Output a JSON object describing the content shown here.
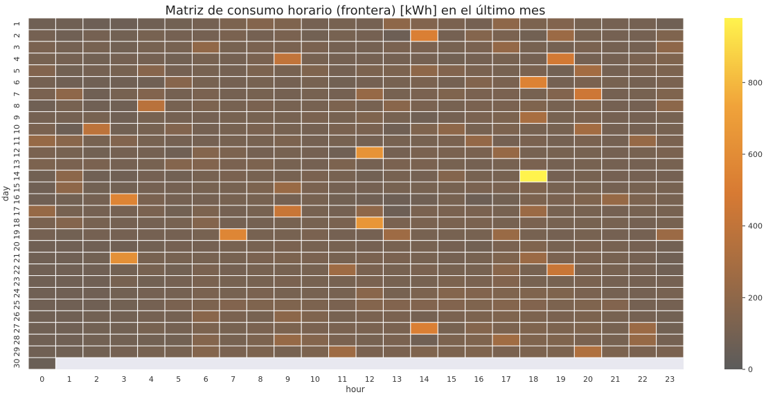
{
  "chart_data": {
    "type": "heatmap",
    "title": "Matriz de consumo horario (frontera) [kWh] en el último mes",
    "xlabel": "hour",
    "ylabel": "day",
    "x_categories": [
      "0",
      "1",
      "2",
      "3",
      "4",
      "5",
      "6",
      "7",
      "8",
      "9",
      "10",
      "11",
      "12",
      "13",
      "14",
      "15",
      "16",
      "17",
      "18",
      "19",
      "20",
      "21",
      "22",
      "23"
    ],
    "y_categories": [
      "1",
      "2",
      "3",
      "4",
      "5",
      "6",
      "7",
      "8",
      "9",
      "10",
      "11",
      "12",
      "13",
      "14",
      "15",
      "16",
      "17",
      "18",
      "19",
      "20",
      "21",
      "22",
      "23",
      "24",
      "25",
      "26",
      "27",
      "28",
      "29",
      "30"
    ],
    "colorbar": {
      "min": 0,
      "max": 980,
      "ticks": [
        0,
        200,
        400,
        600,
        800
      ]
    },
    "colormap": [
      "#5b5b5b",
      "#9a6a45",
      "#d77a33",
      "#f0a33a",
      "#fff34d"
    ],
    "missing_color": "#e8e8f0",
    "values": [
      [
        80,
        80,
        70,
        70,
        80,
        90,
        100,
        130,
        160,
        140,
        100,
        110,
        100,
        200,
        150,
        120,
        100,
        200,
        130,
        150,
        110,
        100,
        100,
        80
      ],
      [
        100,
        80,
        100,
        90,
        110,
        100,
        100,
        120,
        100,
        120,
        90,
        110,
        100,
        70,
        520,
        100,
        160,
        120,
        90,
        250,
        110,
        100,
        100,
        140
      ],
      [
        120,
        100,
        110,
        90,
        110,
        110,
        210,
        110,
        120,
        120,
        120,
        100,
        100,
        120,
        120,
        110,
        120,
        220,
        110,
        100,
        120,
        100,
        100,
        200
      ],
      [
        110,
        100,
        90,
        100,
        100,
        90,
        110,
        100,
        120,
        400,
        110,
        100,
        100,
        100,
        100,
        90,
        100,
        110,
        100,
        470,
        100,
        100,
        120,
        140
      ],
      [
        150,
        90,
        100,
        110,
        170,
        100,
        110,
        100,
        130,
        110,
        140,
        100,
        130,
        130,
        200,
        150,
        120,
        110,
        120,
        90,
        280,
        100,
        120,
        130
      ],
      [
        100,
        80,
        80,
        80,
        80,
        170,
        110,
        100,
        110,
        100,
        110,
        90,
        100,
        110,
        120,
        100,
        150,
        120,
        540,
        100,
        120,
        110,
        100,
        120
      ],
      [
        120,
        200,
        80,
        110,
        150,
        100,
        120,
        100,
        110,
        100,
        110,
        100,
        230,
        110,
        120,
        140,
        120,
        120,
        110,
        150,
        450,
        100,
        110,
        140
      ],
      [
        80,
        110,
        80,
        80,
        370,
        110,
        130,
        110,
        120,
        110,
        110,
        130,
        110,
        180,
        120,
        110,
        120,
        120,
        140,
        110,
        140,
        100,
        100,
        190
      ],
      [
        100,
        100,
        110,
        80,
        110,
        100,
        100,
        110,
        110,
        110,
        120,
        110,
        140,
        110,
        80,
        100,
        120,
        130,
        300,
        110,
        120,
        100,
        100,
        110
      ],
      [
        120,
        70,
        380,
        90,
        110,
        150,
        100,
        110,
        120,
        110,
        100,
        120,
        120,
        80,
        140,
        200,
        110,
        130,
        110,
        110,
        280,
        100,
        100,
        110
      ],
      [
        230,
        180,
        110,
        150,
        110,
        100,
        100,
        110,
        110,
        130,
        100,
        110,
        100,
        110,
        110,
        120,
        220,
        100,
        120,
        100,
        120,
        100,
        230,
        120
      ],
      [
        120,
        110,
        90,
        100,
        100,
        80,
        160,
        130,
        100,
        110,
        100,
        80,
        640,
        100,
        120,
        120,
        120,
        230,
        110,
        110,
        110,
        100,
        110,
        120
      ],
      [
        130,
        120,
        120,
        100,
        110,
        160,
        150,
        120,
        130,
        110,
        100,
        130,
        100,
        120,
        120,
        110,
        100,
        110,
        120,
        100,
        110,
        100,
        100,
        110
      ],
      [
        90,
        190,
        80,
        80,
        100,
        90,
        110,
        120,
        110,
        110,
        120,
        110,
        90,
        110,
        100,
        160,
        110,
        110,
        980,
        100,
        110,
        100,
        100,
        100
      ],
      [
        80,
        200,
        90,
        90,
        100,
        100,
        110,
        110,
        130,
        240,
        120,
        100,
        100,
        110,
        110,
        110,
        120,
        120,
        140,
        110,
        110,
        100,
        110,
        110
      ],
      [
        80,
        90,
        100,
        550,
        120,
        100,
        100,
        110,
        110,
        100,
        110,
        90,
        80,
        70,
        80,
        110,
        70,
        90,
        130,
        120,
        140,
        230,
        130,
        110
      ],
      [
        230,
        110,
        100,
        100,
        120,
        90,
        130,
        100,
        110,
        430,
        110,
        100,
        200,
        70,
        120,
        120,
        120,
        110,
        250,
        110,
        110,
        100,
        110,
        110
      ],
      [
        120,
        160,
        110,
        100,
        100,
        110,
        160,
        100,
        100,
        110,
        110,
        120,
        660,
        120,
        120,
        120,
        120,
        110,
        120,
        110,
        110,
        110,
        100,
        110
      ],
      [
        100,
        90,
        100,
        100,
        100,
        100,
        110,
        560,
        110,
        110,
        120,
        100,
        100,
        260,
        110,
        110,
        110,
        240,
        110,
        100,
        110,
        100,
        100,
        250
      ],
      [
        80,
        80,
        80,
        80,
        90,
        100,
        100,
        110,
        110,
        120,
        110,
        110,
        100,
        110,
        110,
        100,
        90,
        120,
        140,
        110,
        120,
        110,
        100,
        90
      ],
      [
        80,
        80,
        90,
        620,
        110,
        110,
        110,
        110,
        120,
        130,
        120,
        110,
        120,
        120,
        110,
        100,
        110,
        140,
        250,
        120,
        120,
        110,
        100,
        80
      ],
      [
        80,
        80,
        80,
        90,
        110,
        90,
        120,
        100,
        110,
        110,
        110,
        260,
        120,
        110,
        120,
        110,
        110,
        180,
        110,
        430,
        120,
        110,
        100,
        80
      ],
      [
        80,
        80,
        80,
        110,
        90,
        100,
        120,
        110,
        110,
        120,
        110,
        110,
        120,
        110,
        110,
        130,
        120,
        150,
        110,
        110,
        120,
        100,
        100,
        100
      ],
      [
        80,
        80,
        80,
        90,
        100,
        100,
        120,
        110,
        120,
        110,
        110,
        110,
        180,
        110,
        130,
        160,
        150,
        140,
        140,
        140,
        120,
        100,
        100,
        110
      ],
      [
        80,
        80,
        80,
        90,
        100,
        120,
        130,
        150,
        140,
        140,
        130,
        120,
        160,
        150,
        150,
        150,
        140,
        160,
        150,
        130,
        140,
        150,
        100,
        100
      ],
      [
        80,
        80,
        90,
        90,
        100,
        100,
        180,
        120,
        110,
        190,
        140,
        110,
        120,
        120,
        100,
        120,
        130,
        140,
        130,
        120,
        130,
        110,
        100,
        90
      ],
      [
        80,
        80,
        90,
        90,
        110,
        100,
        130,
        110,
        120,
        130,
        120,
        120,
        120,
        120,
        520,
        110,
        160,
        130,
        140,
        130,
        140,
        110,
        250,
        90
      ],
      [
        80,
        80,
        90,
        90,
        90,
        90,
        160,
        110,
        130,
        230,
        160,
        120,
        110,
        120,
        80,
        130,
        140,
        270,
        140,
        140,
        120,
        110,
        230,
        100
      ],
      [
        80,
        80,
        90,
        100,
        110,
        110,
        160,
        120,
        130,
        110,
        130,
        260,
        120,
        120,
        140,
        130,
        140,
        120,
        130,
        130,
        330,
        130,
        120,
        120
      ],
      [
        60,
        null,
        null,
        null,
        null,
        null,
        null,
        null,
        null,
        null,
        null,
        null,
        null,
        null,
        null,
        null,
        null,
        null,
        null,
        null,
        null,
        null,
        null,
        null
      ]
    ]
  }
}
